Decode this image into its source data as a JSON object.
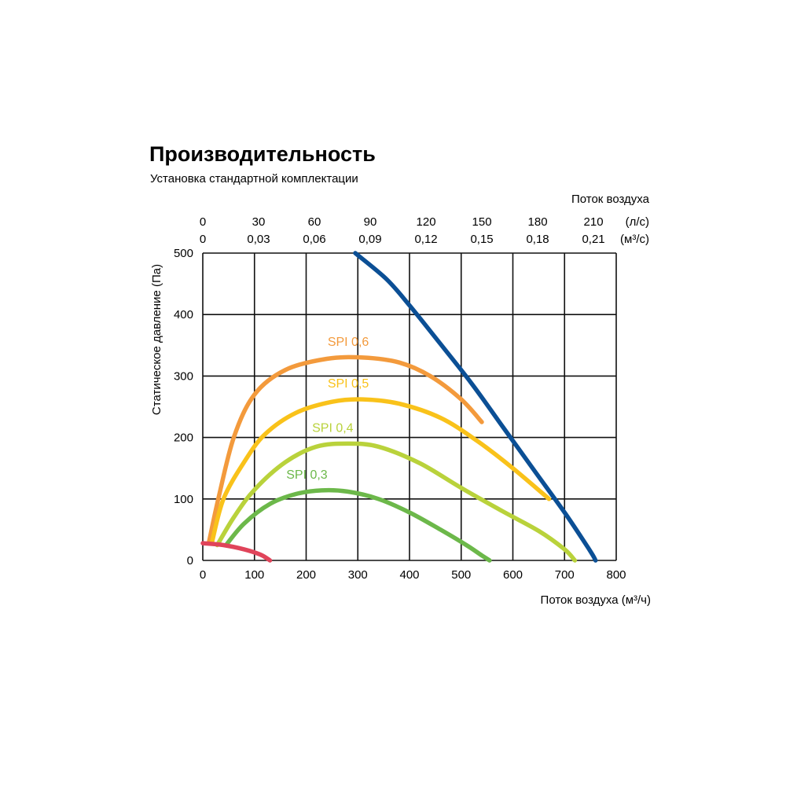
{
  "chart_data": {
    "type": "line",
    "title": "Производительность",
    "subtitle": "Установка стандартной комплектации",
    "xlabel": "Поток воздуха (м³/ч)",
    "ylabel": "Статическое давление (Па)",
    "top_axis_title": "Поток воздуха",
    "xlim": [
      0,
      800
    ],
    "ylim": [
      0,
      500
    ],
    "grid": true,
    "x_ticks": [
      "0",
      "100",
      "200",
      "300",
      "400",
      "500",
      "600",
      "700",
      "800"
    ],
    "y_ticks": [
      "0",
      "100",
      "200",
      "300",
      "400",
      "500"
    ],
    "top_ticks_ls": [
      "0",
      "30",
      "60",
      "90",
      "120",
      "150",
      "180",
      "210"
    ],
    "top_ticks_ls_unit": "(л/с)",
    "top_ticks_m3s": [
      "0",
      "0,03",
      "0,06",
      "0,09",
      "0,12",
      "0,15",
      "0,18",
      "0,21"
    ],
    "top_ticks_m3s_unit": "(м³/с)",
    "series": [
      {
        "color": "#0b4f95",
        "points": [
          [
            295,
            500
          ],
          [
            355,
            458
          ],
          [
            400,
            415
          ],
          [
            460,
            352
          ],
          [
            520,
            288
          ],
          [
            580,
            218
          ],
          [
            640,
            148
          ],
          [
            700,
            78
          ],
          [
            740,
            28
          ],
          [
            755,
            8
          ],
          [
            760,
            0
          ]
        ]
      },
      {
        "name": "SPI 0,6",
        "color": "#f39a3c",
        "points": [
          [
            12,
            30
          ],
          [
            30,
            100
          ],
          [
            60,
            200
          ],
          [
            100,
            270
          ],
          [
            160,
            310
          ],
          [
            240,
            328
          ],
          [
            310,
            330
          ],
          [
            380,
            322
          ],
          [
            440,
            300
          ],
          [
            500,
            262
          ],
          [
            540,
            225
          ]
        ]
      },
      {
        "name": "SPI 0,5",
        "color": "#f9c21a",
        "points": [
          [
            18,
            30
          ],
          [
            40,
            100
          ],
          [
            80,
            160
          ],
          [
            120,
            205
          ],
          [
            180,
            240
          ],
          [
            250,
            258
          ],
          [
            310,
            262
          ],
          [
            380,
            255
          ],
          [
            460,
            232
          ],
          [
            530,
            195
          ],
          [
            600,
            150
          ],
          [
            670,
            100
          ]
        ]
      },
      {
        "name": "SPI 0,4",
        "color": "#b9d23b",
        "points": [
          [
            28,
            25
          ],
          [
            60,
            70
          ],
          [
            100,
            115
          ],
          [
            160,
            160
          ],
          [
            220,
            185
          ],
          [
            280,
            190
          ],
          [
            340,
            185
          ],
          [
            420,
            158
          ],
          [
            500,
            118
          ],
          [
            580,
            80
          ],
          [
            650,
            48
          ],
          [
            700,
            18
          ],
          [
            720,
            0
          ]
        ]
      },
      {
        "name": "SPI 0,3",
        "color": "#6cb84a",
        "points": [
          [
            45,
            25
          ],
          [
            80,
            60
          ],
          [
            130,
            92
          ],
          [
            180,
            108
          ],
          [
            230,
            114
          ],
          [
            280,
            112
          ],
          [
            340,
            100
          ],
          [
            400,
            78
          ],
          [
            460,
            50
          ],
          [
            510,
            25
          ],
          [
            540,
            8
          ],
          [
            555,
            0
          ]
        ]
      },
      {
        "color": "#e0445a",
        "points": [
          [
            0,
            28
          ],
          [
            40,
            25
          ],
          [
            80,
            18
          ],
          [
            110,
            10
          ],
          [
            125,
            3
          ],
          [
            130,
            0
          ]
        ]
      }
    ]
  }
}
